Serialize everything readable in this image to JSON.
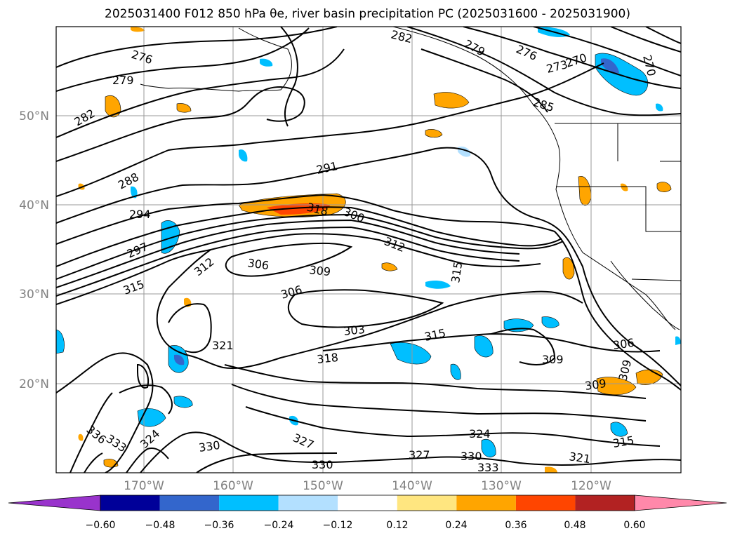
{
  "title": "2025031400 F012 850 hPa θe, river basin precipitation PC (2025031600 - 2025031900)",
  "map": {
    "lat_labels": [
      "50°N",
      "40°N",
      "30°N",
      "20°N"
    ],
    "lon_labels": [
      "170°W",
      "160°W",
      "150°W",
      "140°W",
      "130°W",
      "120°W"
    ],
    "contour_labels": [
      "276",
      "279",
      "282",
      "288",
      "291",
      "294",
      "297",
      "300",
      "303",
      "306",
      "306",
      "309",
      "312",
      "312",
      "315",
      "315",
      "315",
      "318",
      "321",
      "321",
      "324",
      "324",
      "327",
      "327",
      "330",
      "330",
      "330",
      "333",
      "333",
      "336",
      "282",
      "279",
      "276",
      "273",
      "270",
      "270",
      "285",
      "306",
      "309",
      "309",
      "309",
      "315",
      "318"
    ],
    "colors": {
      "negative": [
        "#9933cc",
        "#000099",
        "#3366cc",
        "#00bfff",
        "#b3e0ff"
      ],
      "positive": [
        "#ffe680",
        "#ffa500",
        "#ff4500",
        "#b22222",
        "#ff88aa"
      ],
      "contour": "#000000",
      "grid": "#999999"
    }
  },
  "colorbar": {
    "ticks": [
      "−0.60",
      "−0.48",
      "−0.36",
      "−0.24",
      "−0.12",
      "0.12",
      "0.24",
      "0.36",
      "0.48",
      "0.60"
    ],
    "colors": [
      "#9933cc",
      "#000099",
      "#3366cc",
      "#00bfff",
      "#b3e0ff",
      "#ffffff",
      "#ffe680",
      "#ffa500",
      "#ff4500",
      "#b22222",
      "#ff88aa"
    ]
  }
}
